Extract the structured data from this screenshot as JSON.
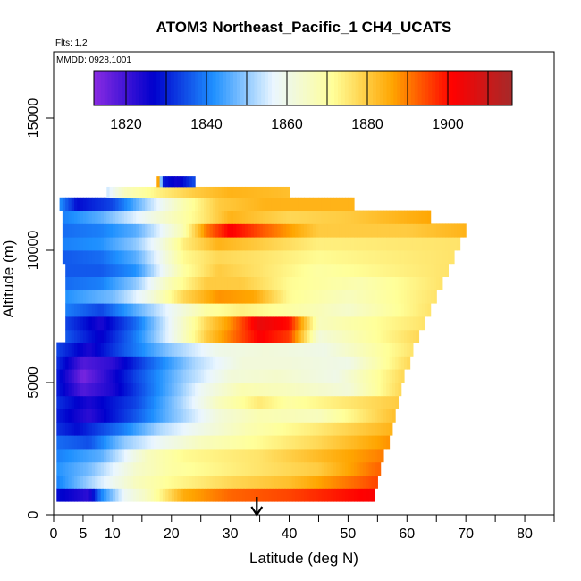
{
  "chart_data": {
    "type": "heatmap",
    "title": "ATOM3 Northeast_Pacific_1 CH4_UCATS",
    "subtitle_flights": "Flts: 1,2",
    "subtitle_mmdd": "MMDD: 0928,1001",
    "xlabel": "Latitude (deg N)",
    "ylabel": "Altitude (m)",
    "xlim": [
      0,
      85
    ],
    "ylim": [
      0,
      17500
    ],
    "x_ticks": [
      "0",
      "5",
      "10",
      "20",
      "30",
      "40",
      "50",
      "60",
      "70",
      "80"
    ],
    "x_tick_values": [
      0,
      5,
      10,
      20,
      30,
      40,
      50,
      60,
      70,
      80
    ],
    "y_ticks": [
      "0",
      "5000",
      "10000",
      "15000"
    ],
    "y_tick_values": [
      0,
      5000,
      10000,
      15000
    ],
    "colorbar": {
      "range": [
        1812,
        1916
      ],
      "tick_labels": [
        "1820",
        "1840",
        "1860",
        "1880",
        "1900"
      ],
      "tick_values": [
        1820,
        1840,
        1860,
        1880,
        1900
      ],
      "colors": [
        "#8a2be2",
        "#0000cd",
        "#1e90ff",
        "#eaf6ff",
        "#ffff99",
        "#ffa500",
        "#ff0000",
        "#a52a2a"
      ]
    },
    "marker_latitude": 34.5,
    "rows": [
      {
        "alt_bottom": 500,
        "alt_top": 1000,
        "x_start": 0.5,
        "x_end": 54.5,
        "points": [
          [
            0.5,
            1828
          ],
          [
            6,
            1822
          ],
          [
            8,
            1840
          ],
          [
            12,
            1858
          ],
          [
            16,
            1866
          ],
          [
            22,
            1885
          ],
          [
            30,
            1892
          ],
          [
            40,
            1895
          ],
          [
            54,
            1902
          ]
        ]
      },
      {
        "alt_bottom": 1000,
        "alt_top": 1500,
        "x_start": 0.5,
        "x_end": 55,
        "points": [
          [
            0.5,
            1840
          ],
          [
            8,
            1855
          ],
          [
            14,
            1866
          ],
          [
            20,
            1872
          ],
          [
            30,
            1878
          ],
          [
            40,
            1882
          ],
          [
            55,
            1895
          ]
        ]
      },
      {
        "alt_bottom": 1500,
        "alt_top": 2000,
        "x_start": 0.5,
        "x_end": 55.5,
        "points": [
          [
            0.5,
            1842
          ],
          [
            6,
            1848
          ],
          [
            10,
            1856
          ],
          [
            14,
            1864
          ],
          [
            20,
            1870
          ],
          [
            30,
            1874
          ],
          [
            45,
            1880
          ],
          [
            55,
            1892
          ]
        ]
      },
      {
        "alt_bottom": 2000,
        "alt_top": 2500,
        "x_start": 0.5,
        "x_end": 56,
        "points": [
          [
            0.5,
            1840
          ],
          [
            8,
            1846
          ],
          [
            12,
            1856
          ],
          [
            16,
            1866
          ],
          [
            22,
            1872
          ],
          [
            35,
            1876
          ],
          [
            56,
            1890
          ]
        ]
      },
      {
        "alt_bottom": 2500,
        "alt_top": 3000,
        "x_start": 0.5,
        "x_end": 57,
        "points": [
          [
            0.5,
            1838
          ],
          [
            6,
            1835
          ],
          [
            12,
            1850
          ],
          [
            18,
            1858
          ],
          [
            25,
            1866
          ],
          [
            35,
            1872
          ],
          [
            45,
            1878
          ],
          [
            57,
            1888
          ]
        ]
      },
      {
        "alt_bottom": 3000,
        "alt_top": 3500,
        "x_start": 0.5,
        "x_end": 57.5,
        "points": [
          [
            0.5,
            1832
          ],
          [
            4,
            1828
          ],
          [
            12,
            1840
          ],
          [
            18,
            1852
          ],
          [
            25,
            1860
          ],
          [
            33,
            1868
          ],
          [
            45,
            1875
          ],
          [
            57.5,
            1884
          ]
        ]
      },
      {
        "alt_bottom": 3500,
        "alt_top": 4000,
        "x_start": 0.5,
        "x_end": 58,
        "points": [
          [
            0.5,
            1830
          ],
          [
            6,
            1822
          ],
          [
            14,
            1836
          ],
          [
            20,
            1848
          ],
          [
            28,
            1862
          ],
          [
            35,
            1868
          ],
          [
            45,
            1866
          ],
          [
            58,
            1882
          ]
        ]
      },
      {
        "alt_bottom": 4000,
        "alt_top": 4500,
        "x_start": 0.5,
        "x_end": 58.5,
        "points": [
          [
            0.5,
            1832
          ],
          [
            6,
            1824
          ],
          [
            14,
            1834
          ],
          [
            20,
            1848
          ],
          [
            28,
            1866
          ],
          [
            35,
            1875
          ],
          [
            40,
            1870
          ],
          [
            58.5,
            1880
          ]
        ]
      },
      {
        "alt_bottom": 4500,
        "alt_top": 5000,
        "x_start": 0.5,
        "x_end": 59,
        "points": [
          [
            0.5,
            1830
          ],
          [
            5,
            1818
          ],
          [
            10,
            1824
          ],
          [
            18,
            1842
          ],
          [
            25,
            1858
          ],
          [
            32,
            1868
          ],
          [
            40,
            1866
          ],
          [
            50,
            1862
          ],
          [
            59,
            1878
          ]
        ]
      },
      {
        "alt_bottom": 5000,
        "alt_top": 5500,
        "x_start": 0.5,
        "x_end": 59.5,
        "points": [
          [
            0.5,
            1830
          ],
          [
            5,
            1814
          ],
          [
            8,
            1820
          ],
          [
            14,
            1834
          ],
          [
            22,
            1850
          ],
          [
            30,
            1862
          ],
          [
            38,
            1864
          ],
          [
            48,
            1860
          ],
          [
            59.5,
            1878
          ]
        ]
      },
      {
        "alt_bottom": 5500,
        "alt_top": 6000,
        "x_start": 0.5,
        "x_end": 60.5,
        "points": [
          [
            0.5,
            1832
          ],
          [
            5,
            1818
          ],
          [
            10,
            1822
          ],
          [
            16,
            1836
          ],
          [
            24,
            1852
          ],
          [
            32,
            1862
          ],
          [
            40,
            1862
          ],
          [
            50,
            1860
          ],
          [
            60.5,
            1878
          ]
        ]
      },
      {
        "alt_bottom": 6000,
        "alt_top": 6500,
        "x_start": 0.5,
        "x_end": 61,
        "points": [
          [
            0.5,
            1834
          ],
          [
            6,
            1824
          ],
          [
            12,
            1836
          ],
          [
            20,
            1850
          ],
          [
            28,
            1860
          ],
          [
            36,
            1862
          ],
          [
            46,
            1860
          ],
          [
            61,
            1876
          ]
        ]
      },
      {
        "alt_bottom": 6500,
        "alt_top": 7000,
        "x_start": 2,
        "x_end": 62,
        "points": [
          [
            2,
            1836
          ],
          [
            8,
            1826
          ],
          [
            14,
            1840
          ],
          [
            20,
            1858
          ],
          [
            26,
            1880
          ],
          [
            30,
            1890
          ],
          [
            35,
            1902
          ],
          [
            40,
            1896
          ],
          [
            45,
            1862
          ],
          [
            62,
            1878
          ]
        ]
      },
      {
        "alt_bottom": 7000,
        "alt_top": 7500,
        "x_start": 2,
        "x_end": 63,
        "points": [
          [
            2,
            1834
          ],
          [
            8,
            1824
          ],
          [
            14,
            1838
          ],
          [
            20,
            1858
          ],
          [
            26,
            1878
          ],
          [
            30,
            1888
          ],
          [
            35,
            1905
          ],
          [
            40,
            1900
          ],
          [
            45,
            1866
          ],
          [
            63,
            1876
          ]
        ]
      },
      {
        "alt_bottom": 7500,
        "alt_top": 8000,
        "x_start": 2,
        "x_end": 64,
        "points": [
          [
            2,
            1840
          ],
          [
            8,
            1834
          ],
          [
            14,
            1846
          ],
          [
            20,
            1858
          ],
          [
            26,
            1870
          ],
          [
            32,
            1874
          ],
          [
            40,
            1870
          ],
          [
            50,
            1864
          ],
          [
            64,
            1876
          ]
        ]
      },
      {
        "alt_bottom": 8000,
        "alt_top": 8500,
        "x_start": 2,
        "x_end": 65,
        "points": [
          [
            2,
            1842
          ],
          [
            10,
            1848
          ],
          [
            16,
            1860
          ],
          [
            22,
            1878
          ],
          [
            28,
            1888
          ],
          [
            34,
            1886
          ],
          [
            40,
            1872
          ],
          [
            50,
            1866
          ],
          [
            65,
            1876
          ]
        ]
      },
      {
        "alt_bottom": 8500,
        "alt_top": 9000,
        "x_start": 2,
        "x_end": 66,
        "points": [
          [
            2,
            1838
          ],
          [
            8,
            1840
          ],
          [
            14,
            1850
          ],
          [
            20,
            1868
          ],
          [
            26,
            1880
          ],
          [
            32,
            1880
          ],
          [
            40,
            1872
          ],
          [
            52,
            1868
          ],
          [
            66,
            1876
          ]
        ]
      },
      {
        "alt_bottom": 9000,
        "alt_top": 9500,
        "x_start": 2,
        "x_end": 67,
        "points": [
          [
            2,
            1836
          ],
          [
            8,
            1836
          ],
          [
            14,
            1842
          ],
          [
            18,
            1856
          ],
          [
            22,
            1870
          ],
          [
            28,
            1880
          ],
          [
            35,
            1876
          ],
          [
            45,
            1870
          ],
          [
            67,
            1876
          ]
        ]
      },
      {
        "alt_bottom": 9500,
        "alt_top": 10000,
        "x_start": 1.5,
        "x_end": 68,
        "points": [
          [
            1.5,
            1836
          ],
          [
            8,
            1838
          ],
          [
            14,
            1846
          ],
          [
            18,
            1858
          ],
          [
            22,
            1872
          ],
          [
            28,
            1878
          ],
          [
            35,
            1876
          ],
          [
            45,
            1872
          ],
          [
            68,
            1876
          ]
        ]
      },
      {
        "alt_bottom": 10000,
        "alt_top": 10500,
        "x_start": 1.5,
        "x_end": 69,
        "points": [
          [
            1.5,
            1840
          ],
          [
            8,
            1842
          ],
          [
            14,
            1850
          ],
          [
            18,
            1860
          ],
          [
            22,
            1874
          ],
          [
            28,
            1884
          ],
          [
            35,
            1880
          ],
          [
            45,
            1874
          ],
          [
            69,
            1876
          ]
        ]
      },
      {
        "alt_bottom": 10500,
        "alt_top": 11000,
        "x_start": 1.5,
        "x_end": 70,
        "points": [
          [
            1.5,
            1838
          ],
          [
            8,
            1840
          ],
          [
            14,
            1846
          ],
          [
            18,
            1856
          ],
          [
            22,
            1868
          ],
          [
            26,
            1890
          ],
          [
            30,
            1902
          ],
          [
            35,
            1894
          ],
          [
            45,
            1880
          ],
          [
            60,
            1880
          ],
          [
            70,
            1884
          ]
        ]
      },
      {
        "alt_bottom": 11000,
        "alt_top": 11500,
        "x_start": 1.5,
        "x_end": 64,
        "points": [
          [
            1.5,
            1840
          ],
          [
            8,
            1846
          ],
          [
            14,
            1856
          ],
          [
            20,
            1866
          ],
          [
            26,
            1876
          ],
          [
            30,
            1884
          ],
          [
            40,
            1878
          ],
          [
            50,
            1880
          ],
          [
            64,
            1886
          ]
        ]
      },
      {
        "alt_bottom": 11500,
        "alt_top": 12000,
        "x_start": 1,
        "x_end": 51,
        "points": [
          [
            1,
            1842
          ],
          [
            4,
            1828
          ],
          [
            10,
            1834
          ],
          [
            16,
            1852
          ],
          [
            22,
            1868
          ],
          [
            28,
            1880
          ],
          [
            36,
            1884
          ],
          [
            51,
            1884
          ]
        ]
      },
      {
        "alt_bottom": 12000,
        "alt_top": 12400,
        "x_start": 9,
        "x_end": 40,
        "points": [
          [
            9,
            1854
          ],
          [
            12,
            1866
          ],
          [
            18,
            1874
          ],
          [
            24,
            1880
          ],
          [
            30,
            1884
          ],
          [
            40,
            1882
          ]
        ]
      },
      {
        "alt_bottom": 12400,
        "alt_top": 12800,
        "x_start": 17.5,
        "x_end": 24,
        "points": [
          [
            17.5,
            1905
          ],
          [
            18.5,
            1830
          ],
          [
            21,
            1825
          ],
          [
            24,
            1835
          ]
        ]
      }
    ]
  }
}
